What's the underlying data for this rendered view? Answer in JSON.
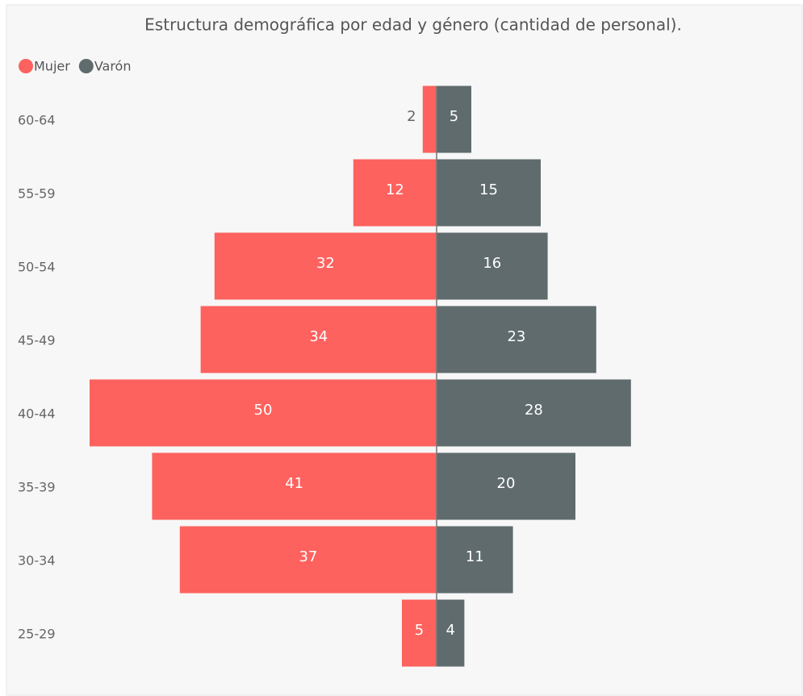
{
  "chart_data": {
    "type": "pyramid",
    "title": "Estructura demográfica por edad y género (cantidad de personal).",
    "categories": [
      "60-64",
      "55-59",
      "50-54",
      "45-49",
      "40-44",
      "35-39",
      "30-34",
      "25-29"
    ],
    "series": [
      {
        "name": "Mujer",
        "color": "#fd625e",
        "values": [
          2,
          12,
          32,
          34,
          50,
          41,
          37,
          5
        ]
      },
      {
        "name": "Varón",
        "color": "#5f6b6d",
        "values": [
          5,
          15,
          16,
          23,
          28,
          20,
          11,
          4
        ]
      }
    ]
  }
}
